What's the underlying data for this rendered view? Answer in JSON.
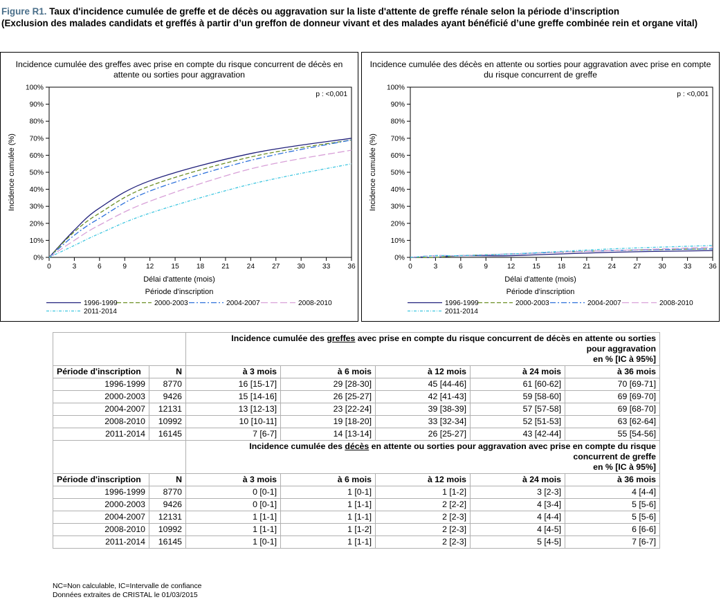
{
  "figure": {
    "label": "Figure R1.",
    "title": " Taux d'incidence cumulée de greffe et de décès ou aggravation sur la liste d'attente de greffe rénale selon la période d’inscription",
    "subtitle": "(Exclusion des malades candidats et greffés à partir d’un greffon de donneur vivant et des malades ayant bénéficié d’une greffe combinée rein et organe vital)"
  },
  "legend_title": "Période d'inscription",
  "chart_data": [
    {
      "type": "line",
      "title_lines": [
        "Incidence cumulée des greffes avec prise en compte du risque concurrent de décès en",
        "attente ou sorties pour aggravation"
      ],
      "xlabel": "Délai d'attente (mois)",
      "ylabel": "Incidence cumulée (%)",
      "annotation": "p : <0,001",
      "xlim": [
        0,
        36
      ],
      "ylim": [
        0,
        100
      ],
      "xticks": [
        "0",
        "3",
        "6",
        "9",
        "12",
        "15",
        "18",
        "21",
        "24",
        "27",
        "30",
        "33",
        "36"
      ],
      "yticks": [
        "0%",
        "10%",
        "20%",
        "30%",
        "40%",
        "50%",
        "60%",
        "70%",
        "80%",
        "90%",
        "100%"
      ],
      "legend_title": "Période d'inscription",
      "series": [
        {
          "name": "1996-1999",
          "color": "#1f1f7a",
          "dash": "",
          "x": [
            0,
            3,
            6,
            12,
            24,
            36
          ],
          "y": [
            0,
            16,
            29,
            45,
            61,
            70
          ]
        },
        {
          "name": "2000-2003",
          "color": "#6b8e23",
          "dash": "6,3",
          "x": [
            0,
            3,
            6,
            12,
            24,
            36
          ],
          "y": [
            0,
            15,
            26,
            42,
            59,
            69
          ]
        },
        {
          "name": "2004-2007",
          "color": "#2a6fdb",
          "dash": "8,3,2,3",
          "x": [
            0,
            3,
            6,
            12,
            24,
            36
          ],
          "y": [
            0,
            13,
            23,
            39,
            57,
            69
          ]
        },
        {
          "name": "2008-2010",
          "color": "#d8a0d8",
          "dash": "10,4",
          "x": [
            0,
            3,
            6,
            12,
            24,
            36
          ],
          "y": [
            0,
            10,
            19,
            33,
            52,
            63
          ]
        },
        {
          "name": "2011-2014",
          "color": "#3ec6e0",
          "dash": "4,2,1,2",
          "x": [
            0,
            3,
            6,
            12,
            24,
            36
          ],
          "y": [
            0,
            7,
            14,
            26,
            43,
            55
          ]
        }
      ]
    },
    {
      "type": "line",
      "title_lines": [
        "Incidence cumulée des décès en attente ou sorties pour aggravation avec prise en compte",
        "du risque concurrent de greffe"
      ],
      "xlabel": "Délai d'attente (mois)",
      "ylabel": "Incidence cumulée (%)",
      "annotation": "p : <0,001",
      "xlim": [
        0,
        36
      ],
      "ylim": [
        0,
        100
      ],
      "xticks": [
        "0",
        "3",
        "6",
        "9",
        "12",
        "15",
        "18",
        "21",
        "24",
        "27",
        "30",
        "33",
        "36"
      ],
      "yticks": [
        "0%",
        "10%",
        "20%",
        "30%",
        "40%",
        "50%",
        "60%",
        "70%",
        "80%",
        "90%",
        "100%"
      ],
      "legend_title": "Période d'inscription",
      "series": [
        {
          "name": "1996-1999",
          "color": "#1f1f7a",
          "dash": "",
          "x": [
            0,
            3,
            6,
            12,
            24,
            36
          ],
          "y": [
            0,
            0,
            1,
            1,
            3,
            4
          ]
        },
        {
          "name": "2000-2003",
          "color": "#6b8e23",
          "dash": "6,3",
          "x": [
            0,
            3,
            6,
            12,
            24,
            36
          ],
          "y": [
            0,
            0,
            1,
            2,
            4,
            5
          ]
        },
        {
          "name": "2004-2007",
          "color": "#2a6fdb",
          "dash": "8,3,2,3",
          "x": [
            0,
            3,
            6,
            12,
            24,
            36
          ],
          "y": [
            0,
            1,
            1,
            2,
            4,
            5
          ]
        },
        {
          "name": "2008-2010",
          "color": "#d8a0d8",
          "dash": "10,4",
          "x": [
            0,
            3,
            6,
            12,
            24,
            36
          ],
          "y": [
            0,
            1,
            1,
            2,
            4,
            6
          ]
        },
        {
          "name": "2011-2014",
          "color": "#3ec6e0",
          "dash": "4,2,1,2",
          "x": [
            0,
            3,
            6,
            12,
            24,
            36
          ],
          "y": [
            0,
            1,
            1,
            2,
            5,
            7
          ]
        }
      ]
    }
  ],
  "tables": [
    {
      "header_lines": [
        "Incidence cumulée des ",
        "greffes",
        " avec prise en compte du risque concurrent de décès en attente ou sorties",
        "pour aggravation",
        "en % [IC à 95%]"
      ],
      "columns": [
        "Période d'inscription",
        "N",
        "à 3 mois",
        "à 6 mois",
        "à 12 mois",
        "à 24 mois",
        "à 36 mois"
      ],
      "rows": [
        [
          "1996-1999",
          "8770",
          "16 [15-17]",
          "29 [28-30]",
          "45 [44-46]",
          "61 [60-62]",
          "70 [69-71]"
        ],
        [
          "2000-2003",
          "9426",
          "15 [14-16]",
          "26 [25-27]",
          "42 [41-43]",
          "59 [58-60]",
          "69 [69-70]"
        ],
        [
          "2004-2007",
          "12131",
          "13 [12-13]",
          "23 [22-24]",
          "39 [38-39]",
          "57 [57-58]",
          "69 [68-70]"
        ],
        [
          "2008-2010",
          "10992",
          "10 [10-11]",
          "19 [18-20]",
          "33 [32-34]",
          "52 [51-53]",
          "63 [62-64]"
        ],
        [
          "2011-2014",
          "16145",
          "7 [6-7]",
          "14 [13-14]",
          "26 [25-27]",
          "43 [42-44]",
          "55 [54-56]"
        ]
      ]
    },
    {
      "header_lines": [
        "Incidence cumulée des ",
        "décès",
        " en attente ou sorties pour aggravation avec prise en compte du risque",
        "concurrent de greffe",
        "en % [IC à 95%]"
      ],
      "columns": [
        "Période d'inscription",
        "N",
        "à 3 mois",
        "à 6 mois",
        "à 12 mois",
        "à 24 mois",
        "à 36 mois"
      ],
      "rows": [
        [
          "1996-1999",
          "8770",
          "0 [0-1]",
          "1 [0-1]",
          "1 [1-2]",
          "3 [2-3]",
          "4 [4-4]"
        ],
        [
          "2000-2003",
          "9426",
          "0 [0-1]",
          "1 [1-1]",
          "2 [2-2]",
          "4 [3-4]",
          "5 [5-6]"
        ],
        [
          "2004-2007",
          "12131",
          "1 [1-1]",
          "1 [1-1]",
          "2 [2-3]",
          "4 [4-4]",
          "5 [5-6]"
        ],
        [
          "2008-2010",
          "10992",
          "1 [1-1]",
          "1 [1-2]",
          "2 [2-3]",
          "4 [4-5]",
          "6 [6-6]"
        ],
        [
          "2011-2014",
          "16145",
          "1 [0-1]",
          "1 [1-1]",
          "2 [2-3]",
          "5 [4-5]",
          "7 [6-7]"
        ]
      ]
    }
  ],
  "notes": [
    "NC=Non calculable, IC=Intervalle de confiance",
    "Données extraites de CRISTAL le 01/03/2015"
  ]
}
